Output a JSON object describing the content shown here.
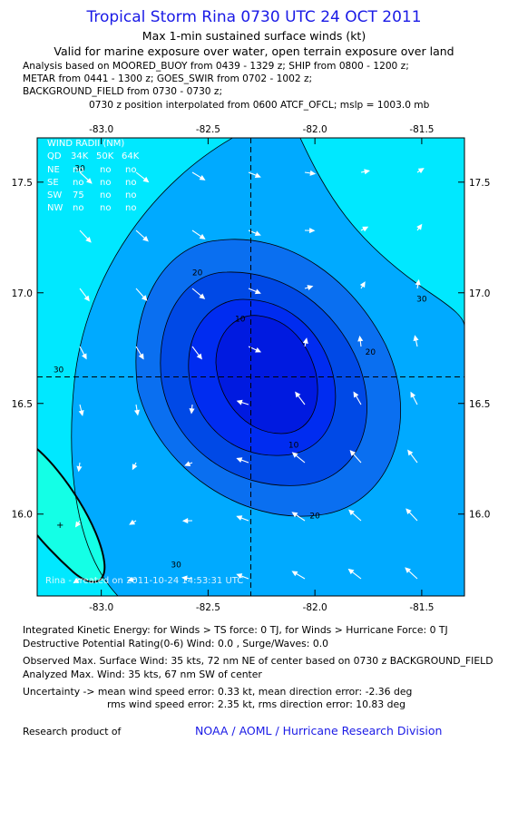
{
  "header": {
    "title": "Tropical Storm Rina 0730 UTC 24 OCT 2011",
    "subtitle1": "Max 1-min sustained surface winds (kt)",
    "subtitle2": "Valid for marine exposure over water, open terrain exposure over land",
    "analysis_lines": [
      "Analysis based on MOORED_BUOY from 0439 - 1329 z; SHIP from 0800 - 1200 z;",
      "METAR from 0441 - 1300 z; GOES_SWIR from 0702 - 1002 z;",
      "BACKGROUND_FIELD from 0730 - 0730 z;"
    ],
    "position_line": "0730 z position interpolated from 0600 ATCF_OFCL; mslp = 1003.0 mb"
  },
  "wind_radii": {
    "title": "WIND RADII (NM)",
    "columns": [
      "QD",
      "34K",
      "50K",
      "64K"
    ],
    "rows": [
      [
        "NE",
        "no",
        "no",
        "no"
      ],
      [
        "SE",
        "no",
        "no",
        "no"
      ],
      [
        "SW",
        "75",
        "no",
        "no"
      ],
      [
        "NW",
        "no",
        "no",
        "no"
      ]
    ]
  },
  "watermark": "Rina - created on 2011-10-24 14:53:31 UTC",
  "chart_data": {
    "type": "contour",
    "xlim": [
      -83.3,
      -81.3
    ],
    "ylim": [
      15.63,
      17.7
    ],
    "x_ticks": [
      -83.0,
      -82.5,
      -82.0,
      -81.5
    ],
    "x_tick_labels": [
      "-83.0",
      "-82.5",
      "-82.0",
      "-81.5"
    ],
    "y_ticks": [
      16.0,
      16.5,
      17.0,
      17.5
    ],
    "y_tick_labels": [
      "16.0",
      "16.5",
      "17.0",
      "17.5"
    ],
    "center": {
      "lon": -82.3,
      "lat": 16.62
    },
    "contour_labels": [
      {
        "text": "30",
        "lon": -83.1,
        "lat": 17.55
      },
      {
        "text": "20",
        "lon": -82.55,
        "lat": 17.08
      },
      {
        "text": "10",
        "lon": -82.35,
        "lat": 16.87
      },
      {
        "text": "10",
        "lon": -82.1,
        "lat": 16.3
      },
      {
        "text": "20",
        "lon": -82.0,
        "lat": 15.98
      },
      {
        "text": "20",
        "lon": -81.74,
        "lat": 16.72
      },
      {
        "text": "30",
        "lon": -83.2,
        "lat": 16.64
      },
      {
        "text": "30",
        "lon": -81.5,
        "lat": 16.96
      },
      {
        "text": "30",
        "lon": -82.65,
        "lat": 15.76
      }
    ],
    "colors": {
      "c30": "#00e8ff",
      "c20": "#00aaff",
      "c10": "#0a6ff0",
      "c5": "#0049e6",
      "c1": "#002cf0",
      "c0": "#001ae0",
      "coast": "#14ffe6"
    }
  },
  "footer": {
    "ike_line": "Integrated Kinetic Energy:  for Winds > TS force: 0 TJ,  for Winds > Hurricane Force: 0 TJ",
    "dpr_line": "Destructive Potential Rating(0-6)   Wind: 0.0 , Surge/Waves: 0.0",
    "obs_line": "Observed Max. Surface Wind: 35 kts, 72 nm NE of center based on 0730 z BACKGROUND_FIELD",
    "ana_line": "Analyzed Max. Wind: 35 kts, 67 nm SW of center",
    "unc_line1": "Uncertainty -> mean wind speed error: 0.33 kt,   mean direction error:  -2.36 deg",
    "unc_line2": "rms wind speed error: 2.35 kt,   rms direction error: 10.83 deg",
    "research": "Research product of",
    "org": "NOAA / AOML / Hurricane Research Division"
  }
}
